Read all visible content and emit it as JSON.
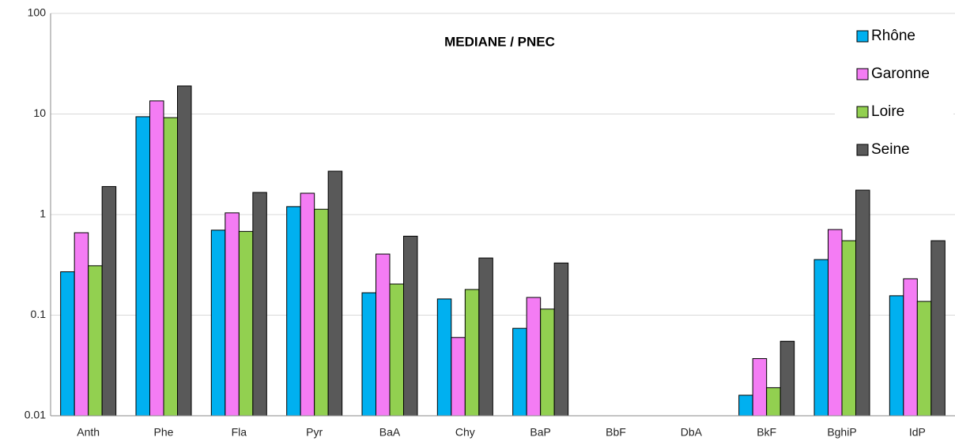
{
  "chart_data": {
    "type": "bar",
    "title": "MEDIANE / PNEC",
    "categories": [
      "Anth",
      "Phe",
      "Fla",
      "Pyr",
      "BaA",
      "Chy",
      "BaP",
      "BbF",
      "DbA",
      "BkF",
      "BghiP",
      "IdP"
    ],
    "series": [
      {
        "name": "Rhône",
        "color": "#00b0f0",
        "values": [
          0.27,
          9.4,
          0.7,
          1.2,
          0.167,
          0.145,
          0.074,
          null,
          null,
          0.016,
          0.357,
          0.156
        ]
      },
      {
        "name": "Garonne",
        "color": "#f47cf4",
        "values": [
          0.66,
          13.5,
          1.04,
          1.63,
          0.405,
          0.06,
          0.15,
          null,
          null,
          0.037,
          0.71,
          0.23
        ]
      },
      {
        "name": "Loire",
        "color": "#92d050",
        "values": [
          0.31,
          9.2,
          0.68,
          1.13,
          0.204,
          0.18,
          0.115,
          null,
          null,
          0.019,
          0.55,
          0.137
        ]
      },
      {
        "name": "Seine",
        "color": "#595959",
        "values": [
          1.9,
          19,
          1.66,
          2.7,
          0.61,
          0.37,
          0.33,
          null,
          null,
          0.055,
          1.75,
          0.55
        ]
      }
    ],
    "log_scale": true,
    "ylim": [
      0.01,
      100
    ],
    "yticks": [
      0.01,
      0.1,
      1,
      10,
      100
    ],
    "grid": true,
    "legend": "top-right"
  }
}
